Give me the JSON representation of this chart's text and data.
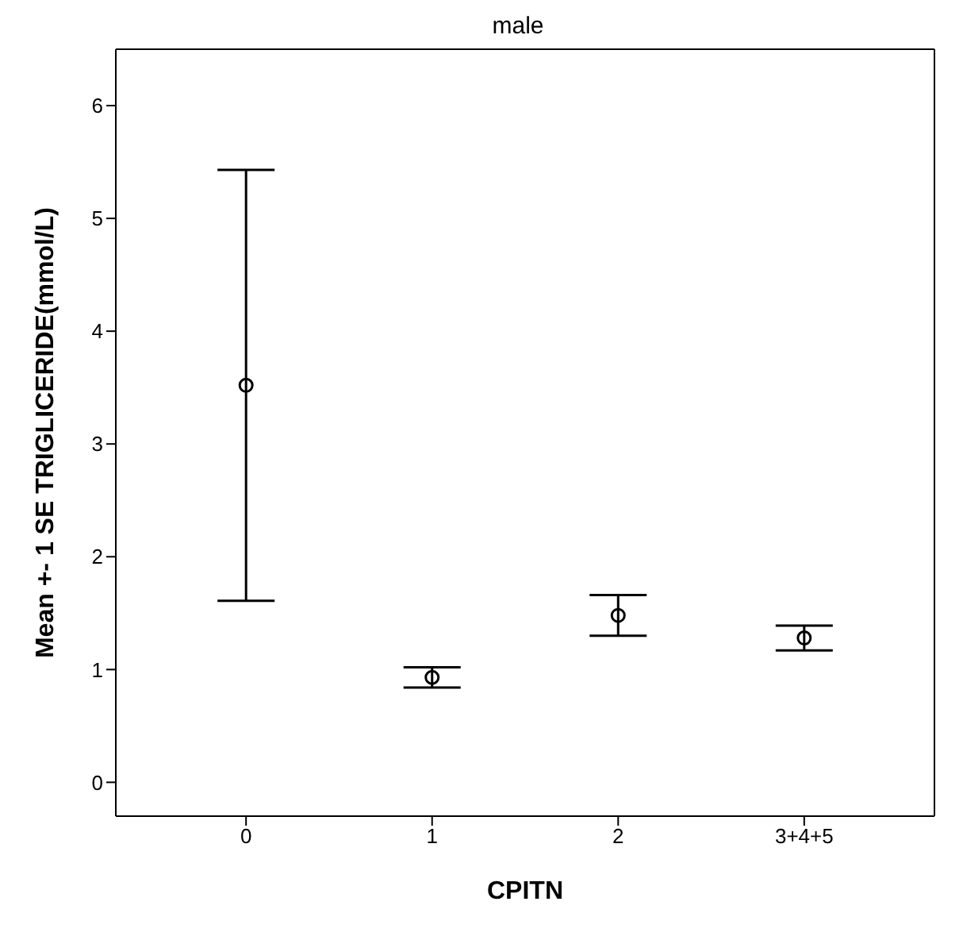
{
  "chart_data": {
    "type": "scatter",
    "title": "male",
    "xlabel": "CPITN",
    "ylabel": "Mean +- 1 SE TRIGLICERIDE(mmol/L)",
    "categories": [
      "0",
      "1",
      "2",
      "3+4+5"
    ],
    "values": [
      3.52,
      0.93,
      1.48,
      1.28
    ],
    "errors": [
      1.91,
      0.09,
      0.18,
      0.11
    ],
    "color": "#000000",
    "marker": "circle",
    "grid": false,
    "legend": false,
    "ylim": [
      -0.3,
      6.5
    ],
    "yticks": [
      0,
      1,
      2,
      3,
      4,
      5,
      6
    ]
  }
}
